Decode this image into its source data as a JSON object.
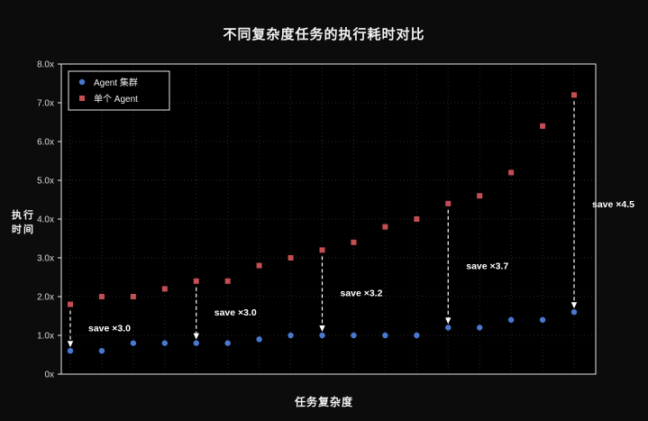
{
  "page": {
    "background": "#0c0c0c"
  },
  "chart_data": {
    "type": "scatter",
    "title": "不同复杂度任务的执行耗时对比",
    "xlabel": "任务复杂度",
    "ylabel": "执行时间",
    "ylim": [
      0,
      8
    ],
    "ytick_labels": [
      "0x",
      "1.0x",
      "2.0x",
      "3.0x",
      "4.0x",
      "5.0x",
      "6.0x",
      "7.0x",
      "8.0x"
    ],
    "grid": true,
    "legend_position": "upper left",
    "x": [
      1,
      2,
      3,
      4,
      5,
      6,
      7,
      8,
      9,
      10,
      11,
      12,
      13,
      14,
      15,
      16,
      17
    ],
    "series": [
      {
        "name": "Agent 集群",
        "marker": "circle",
        "color": "#4878cf",
        "values": [
          0.6,
          0.6,
          0.8,
          0.8,
          0.8,
          0.8,
          0.9,
          1.0,
          1.0,
          1.0,
          1.0,
          1.0,
          1.2,
          1.2,
          1.4,
          1.4,
          1.6
        ]
      },
      {
        "name": "单个 Agent",
        "marker": "square",
        "color": "#c44e52",
        "values": [
          1.8,
          2.0,
          2.0,
          2.2,
          2.4,
          2.4,
          2.8,
          3.0,
          3.2,
          3.4,
          3.8,
          4.0,
          4.4,
          4.6,
          5.2,
          6.4,
          7.2
        ]
      }
    ],
    "annotations": [
      {
        "index": 0,
        "label": "save ×3.0"
      },
      {
        "index": 4,
        "label": "save ×3.0"
      },
      {
        "index": 8,
        "label": "save ×3.2"
      },
      {
        "index": 12,
        "label": "save ×3.7"
      },
      {
        "index": 16,
        "label": "save ×4.5"
      }
    ],
    "colors": {
      "plot_background": "#000000",
      "border": "#e6e6e6",
      "tick_text": "#d9d9d9",
      "annotation_text": "#ffffff",
      "arrow": "#ffffff",
      "grid": "#2a2a2a"
    }
  }
}
